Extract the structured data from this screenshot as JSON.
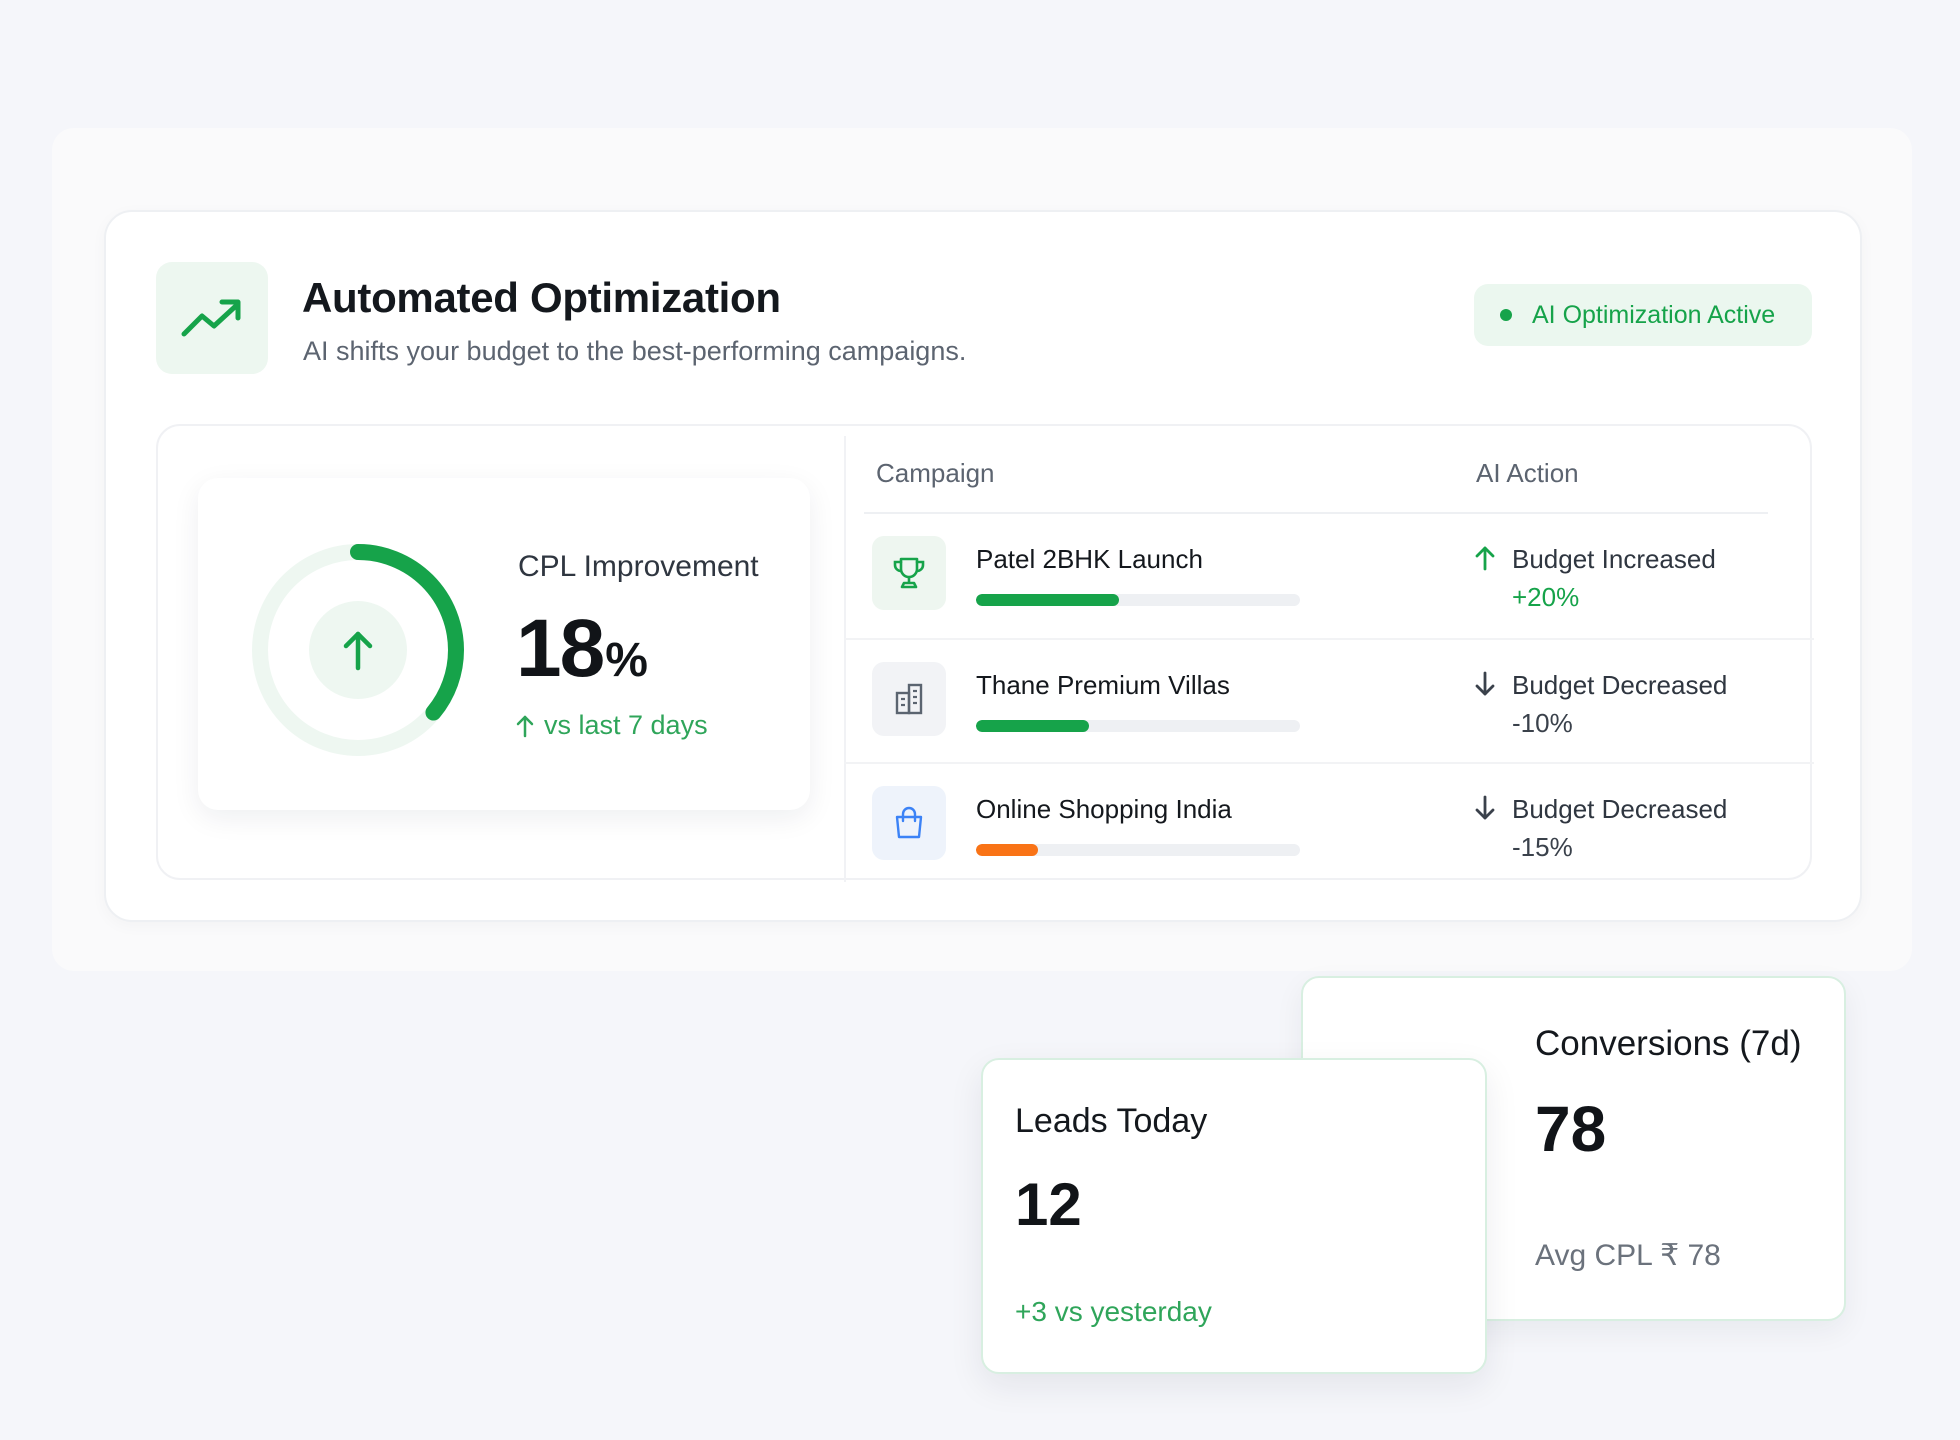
{
  "header": {
    "title": "Automated Optimization",
    "subtitle": "AI shifts your budget to the best-performing campaigns.",
    "icon": "trending-up-icon",
    "status": "AI Optimization Active"
  },
  "cpl": {
    "label": "CPL Improvement",
    "value": "18",
    "unit": "%",
    "trend": "vs last 7 days",
    "ring_progress": 0.36
  },
  "table": {
    "col_campaign": "Campaign",
    "col_action": "AI Action",
    "rows": [
      {
        "name": "Patel 2BHK Launch",
        "icon": "trophy-icon",
        "progress": 0.44,
        "bar_color": "#16a34a",
        "direction": "up",
        "action": "Budget Increased",
        "delta": "+20%",
        "delta_color": "#16a34a"
      },
      {
        "name": "Thane Premium Villas",
        "icon": "building-icon",
        "progress": 0.35,
        "bar_color": "#16a34a",
        "direction": "down",
        "action": "Budget Decreased",
        "delta": "-10%",
        "delta_color": "#3a414b"
      },
      {
        "name": "Online Shopping India",
        "icon": "shopping-bag-icon",
        "progress": 0.19,
        "bar_color": "#f97316",
        "direction": "down",
        "action": "Budget Decreased",
        "delta": "-15%",
        "delta_color": "#3a414b"
      }
    ]
  },
  "conversions": {
    "title": "Conversions (7d)",
    "value": "78",
    "sub": "Avg CPL ₹ 78"
  },
  "leads": {
    "title": "Leads Today",
    "value": "12",
    "sub": "+3 vs yesterday"
  },
  "colors": {
    "accent": "#16a34a",
    "orange": "#f97316"
  }
}
